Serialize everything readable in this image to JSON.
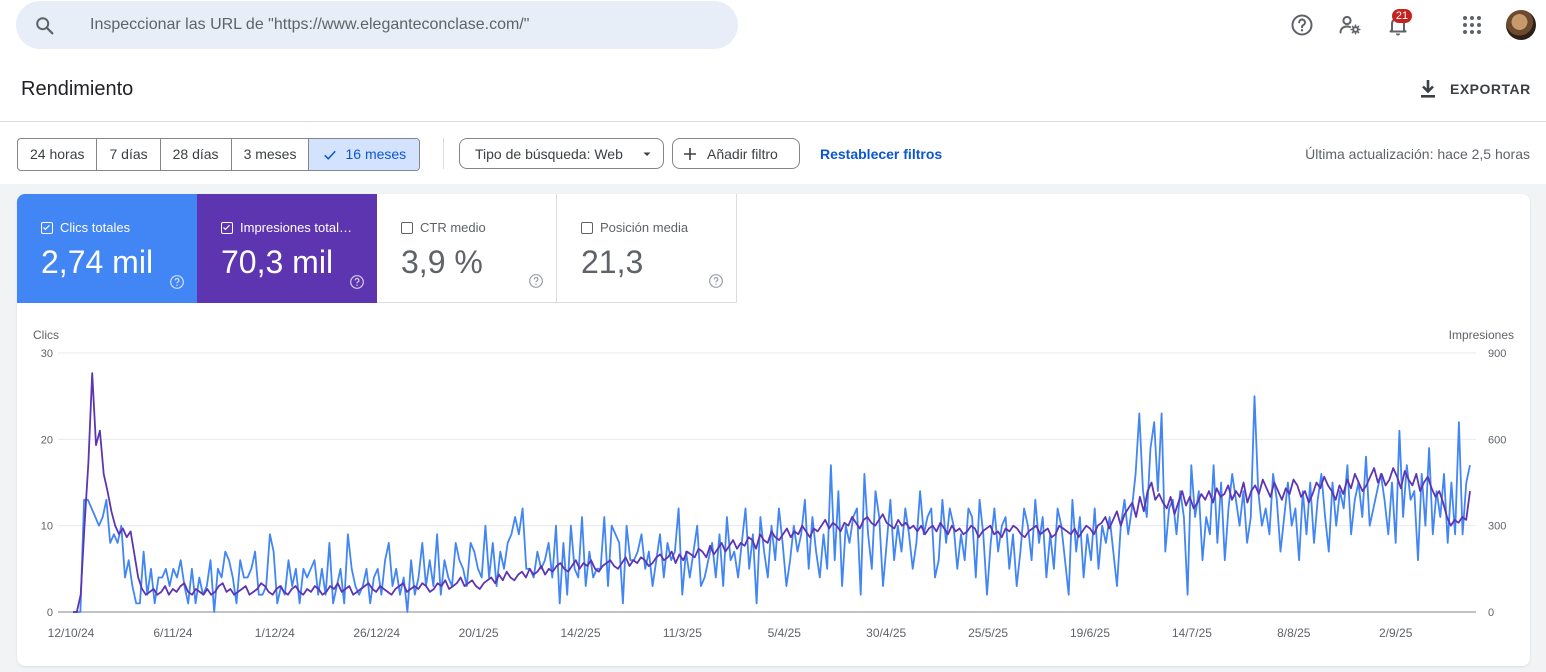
{
  "search": {
    "placeholder": "Inspeccionar las URL de \"https://www.eleganteconclase.com/\""
  },
  "topbar": {
    "icons": [
      "help-icon",
      "manage-users-icon",
      "notifications-icon",
      "apps-grid-icon"
    ],
    "notifications_count": "21"
  },
  "header": {
    "title": "Rendimiento",
    "export_label": "EXPORTAR"
  },
  "filters": {
    "date_ranges": [
      {
        "label": "24 horas",
        "selected": false
      },
      {
        "label": "7 días",
        "selected": false
      },
      {
        "label": "28 días",
        "selected": false
      },
      {
        "label": "3 meses",
        "selected": false
      },
      {
        "label": "16 meses",
        "selected": true
      }
    ],
    "search_type": "Tipo de búsqueda: Web",
    "add_filter": "Añadir filtro",
    "reset": "Restablecer filtros",
    "last_update": "Última actualización: hace 2,5 horas"
  },
  "metrics": [
    {
      "label": "Clics totales",
      "value": "2,74 mil",
      "checked": true,
      "color": "#4285f4"
    },
    {
      "label": "Impresiones total…",
      "value": "70,3 mil",
      "checked": true,
      "color": "#5e35b1"
    },
    {
      "label": "CTR medio",
      "value": "3,9 %",
      "checked": false,
      "color": "#ffffff"
    },
    {
      "label": "Posición media",
      "value": "21,3",
      "checked": false,
      "color": "#ffffff"
    }
  ],
  "chart_data": {
    "type": "line",
    "left_axis": {
      "label": "Clics",
      "ticks": [
        0,
        10,
        20,
        30
      ],
      "range": [
        0,
        30
      ]
    },
    "right_axis": {
      "label": "Impresiones",
      "ticks": [
        0,
        300,
        600,
        900
      ],
      "range": [
        0,
        900
      ]
    },
    "x_tick_labels": [
      "12/10/24",
      "6/11/24",
      "1/12/24",
      "26/12/24",
      "20/1/25",
      "14/2/25",
      "11/3/25",
      "5/4/25",
      "30/4/25",
      "25/5/25",
      "19/6/25",
      "14/7/25",
      "8/8/25",
      "2/9/25"
    ],
    "grid": true,
    "series": [
      {
        "metric": "Clics totales",
        "axis": "left",
        "color": "#4285f4",
        "values": [
          0,
          0,
          0,
          13,
          13,
          12,
          11,
          10,
          11,
          13,
          8,
          9,
          8,
          10,
          4,
          6,
          3,
          1,
          1,
          7,
          2,
          5,
          1,
          4,
          4,
          5,
          3,
          5,
          4,
          6,
          3,
          1,
          5,
          1,
          4,
          2,
          3,
          6,
          0,
          5,
          4,
          7,
          6,
          4,
          1,
          6,
          4,
          4,
          5,
          7,
          2,
          2,
          3,
          9,
          7,
          1,
          3,
          2,
          6,
          3,
          5,
          1,
          5,
          4,
          5,
          6,
          2,
          5,
          2,
          8,
          1,
          3,
          5,
          1,
          9,
          5,
          3,
          2,
          3,
          5,
          1,
          4,
          5,
          2,
          6,
          8,
          3,
          5,
          2,
          4,
          0,
          6,
          2,
          4,
          8,
          3,
          6,
          3,
          9,
          2,
          6,
          4,
          3,
          8,
          6,
          5,
          3,
          8,
          7,
          5,
          4,
          10,
          4,
          8,
          3,
          7,
          5,
          8,
          9,
          11,
          9,
          12,
          5,
          5,
          4,
          7,
          5,
          6,
          8,
          4,
          10,
          1,
          8,
          2,
          10,
          5,
          4,
          11,
          3,
          7,
          4,
          5,
          5,
          11,
          3,
          10,
          9,
          8,
          1,
          10,
          6,
          6,
          7,
          9,
          5,
          7,
          3,
          6,
          9,
          4,
          8,
          6,
          7,
          12,
          2,
          7,
          4,
          7,
          10,
          3,
          4,
          6,
          8,
          4,
          9,
          3,
          11,
          6,
          7,
          4,
          8,
          12,
          5,
          9,
          1,
          11,
          7,
          4,
          10,
          6,
          12,
          8,
          3,
          6,
          10,
          7,
          9,
          13,
          5,
          11,
          7,
          4,
          9,
          5,
          17,
          6,
          14,
          3,
          10,
          8,
          11,
          12,
          2,
          16,
          9,
          5,
          14,
          11,
          3,
          8,
          13,
          6,
          10,
          7,
          12,
          9,
          5,
          8,
          14,
          9,
          11,
          12,
          4,
          6,
          13,
          8,
          12,
          10,
          5,
          9,
          6,
          12,
          11,
          4,
          13,
          9,
          2,
          8,
          12,
          7,
          10,
          11,
          5,
          9,
          3,
          7,
          12,
          10,
          6,
          13,
          8,
          11,
          4,
          9,
          5,
          12,
          10,
          6,
          2,
          13,
          7,
          11,
          4,
          9,
          6,
          12,
          5,
          10,
          8,
          11,
          7,
          3,
          10,
          13,
          9,
          12,
          16,
          23,
          14,
          11,
          19,
          22,
          14,
          23,
          7,
          12,
          13,
          9,
          14,
          11,
          2,
          17,
          11,
          14,
          6,
          11,
          9,
          17,
          8,
          15,
          6,
          12,
          16,
          13,
          10,
          14,
          8,
          11,
          25,
          14,
          10,
          12,
          9,
          16,
          13,
          7,
          11,
          15,
          10,
          12,
          6,
          14,
          9,
          15,
          8,
          13,
          16,
          11,
          7,
          15,
          10,
          14,
          12,
          17,
          9,
          13,
          15,
          11,
          18,
          10,
          12,
          14,
          16,
          13,
          9,
          15,
          8,
          21,
          11,
          17,
          13,
          14,
          6,
          16,
          10,
          19,
          9,
          14,
          11,
          16,
          8,
          15,
          9,
          22,
          9,
          15,
          17
        ]
      },
      {
        "metric": "Impresiones totales",
        "axis": "right",
        "color": "#5e35b1",
        "values": [
          0,
          0,
          60,
          300,
          520,
          830,
          580,
          630,
          480,
          420,
          350,
          300,
          270,
          290,
          260,
          280,
          200,
          120,
          80,
          60,
          70,
          80,
          60,
          70,
          90,
          60,
          80,
          70,
          90,
          100,
          70,
          60,
          80,
          70,
          60,
          80,
          60,
          70,
          90,
          100,
          70,
          80,
          60,
          70,
          80,
          90,
          60,
          70,
          80,
          100,
          90,
          70,
          60,
          80,
          90,
          70,
          60,
          80,
          90,
          70,
          60,
          80,
          70,
          90,
          80,
          60,
          70,
          90,
          80,
          100,
          70,
          80,
          90,
          60,
          70,
          80,
          90,
          100,
          80,
          70,
          90,
          80,
          70,
          60,
          80,
          90,
          100,
          70,
          80,
          90,
          80,
          100,
          90,
          70,
          80,
          100,
          90,
          110,
          80,
          90,
          100,
          120,
          90,
          100,
          110,
          90,
          80,
          100,
          110,
          120,
          100,
          130,
          110,
          140,
          120,
          110,
          130,
          140,
          120,
          150,
          130,
          140,
          160,
          130,
          150,
          140,
          160,
          170,
          150,
          140,
          160,
          180,
          150,
          170,
          160,
          180,
          150,
          140,
          160,
          170,
          180,
          160,
          150,
          170,
          190,
          160,
          180,
          170,
          190,
          180,
          160,
          170,
          190,
          200,
          180,
          190,
          210,
          170,
          200,
          180,
          210,
          200,
          190,
          220,
          210,
          190,
          230,
          200,
          220,
          240,
          210,
          230,
          250,
          220,
          240,
          230,
          260,
          250,
          220,
          270,
          250,
          240,
          280,
          260,
          250,
          270,
          290,
          260,
          280,
          270,
          300,
          280,
          260,
          290,
          280,
          300,
          320,
          290,
          310,
          300,
          280,
          310,
          300,
          330,
          310,
          290,
          320,
          330,
          310,
          300,
          320,
          340,
          310,
          300,
          290,
          320,
          300,
          310,
          290,
          300,
          280,
          300,
          270,
          290,
          300,
          280,
          310,
          290,
          270,
          300,
          280,
          290,
          270,
          280,
          300,
          290,
          260,
          280,
          290,
          300,
          270,
          280,
          260,
          290,
          280,
          300,
          290,
          270,
          260,
          280,
          290,
          300,
          270,
          280,
          290,
          260,
          270,
          300,
          290,
          280,
          270,
          290,
          260,
          280,
          300,
          290,
          270,
          300,
          310,
          330,
          290,
          320,
          350,
          300,
          340,
          360,
          380,
          330,
          400,
          350,
          420,
          450,
          390,
          410,
          380,
          360,
          400,
          340,
          380,
          420,
          370,
          400,
          360,
          380,
          410,
          390,
          420,
          380,
          430,
          400,
          410,
          440,
          390,
          420,
          400,
          450,
          380,
          420,
          440,
          410,
          460,
          430,
          400,
          450,
          420,
          390,
          430,
          410,
          460,
          440,
          400,
          420,
          380,
          410,
          450,
          430,
          470,
          440,
          420,
          390,
          440,
          410,
          460,
          430,
          480,
          450,
          420,
          440,
          470,
          500,
          450,
          480,
          440,
          460,
          500,
          470,
          430,
          490,
          460,
          440,
          480,
          420,
          450,
          470,
          430,
          400,
          420,
          380,
          330,
          300,
          320,
          310,
          330,
          320,
          420
        ]
      }
    ]
  }
}
